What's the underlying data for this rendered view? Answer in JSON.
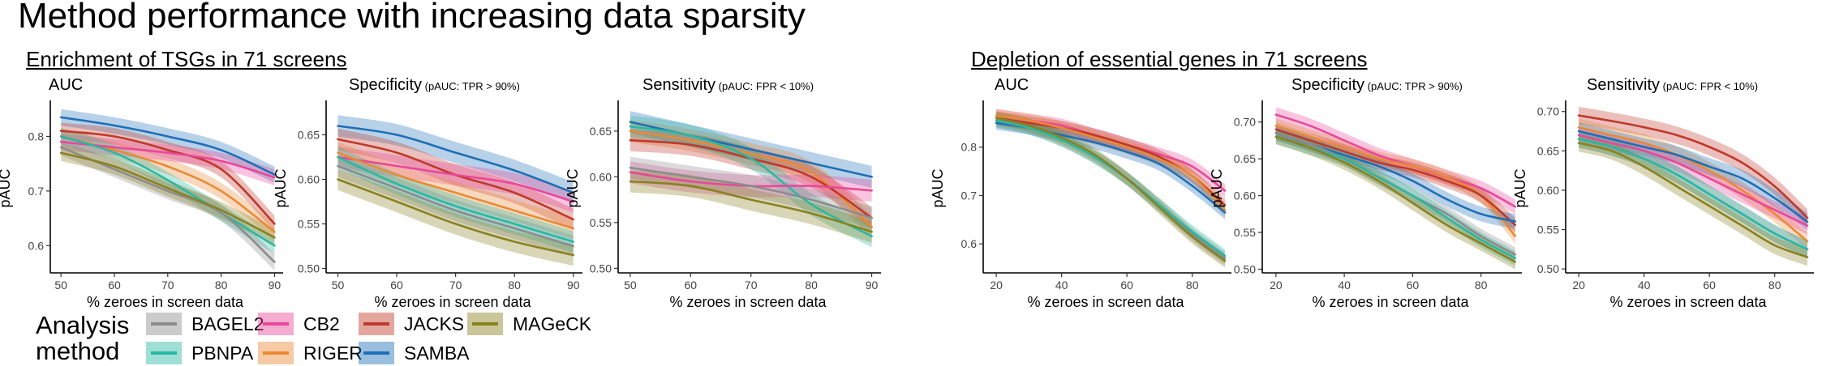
{
  "title": "Method performance with increasing data sparsity",
  "sections": [
    {
      "title": "Enrichment of TSGs in 71 screens"
    },
    {
      "title": "Depletion of essential genes in 71 screens"
    }
  ],
  "legend": {
    "title_line1": "Analysis",
    "title_line2": "method",
    "items": [
      {
        "name": "BAGEL2",
        "color": "#8c8c8c"
      },
      {
        "name": "PBNPA",
        "color": "#2ab8a2"
      },
      {
        "name": "CB2",
        "color": "#e8489a"
      },
      {
        "name": "RIGER",
        "color": "#e98a35"
      },
      {
        "name": "JACKS",
        "color": "#c0392b"
      },
      {
        "name": "SAMBA",
        "color": "#1e6fb6"
      },
      {
        "name": "MAGeCK",
        "color": "#8a8120"
      }
    ]
  },
  "chart_data": [
    {
      "type": "line",
      "section": 0,
      "title": "AUC",
      "subtitle": "",
      "xlabel": "% zeroes in screen data",
      "ylabel": "pAUC",
      "xlim": [
        48,
        91
      ],
      "ylim": [
        0.55,
        0.86
      ],
      "xticks": [
        50,
        60,
        70,
        80,
        90
      ],
      "yticks": [
        0.6,
        0.7,
        0.8
      ],
      "ytick_labels": [
        "0.6",
        "0.7",
        "0.8"
      ],
      "band": 0.015,
      "series": [
        {
          "name": "SAMBA",
          "x": [
            50,
            60,
            70,
            80,
            90
          ],
          "y": [
            0.835,
            0.82,
            0.8,
            0.775,
            0.73
          ]
        },
        {
          "name": "JACKS",
          "x": [
            50,
            60,
            70,
            80,
            90
          ],
          "y": [
            0.81,
            0.8,
            0.775,
            0.74,
            0.64
          ]
        },
        {
          "name": "RIGER",
          "x": [
            50,
            60,
            70,
            80,
            90
          ],
          "y": [
            0.8,
            0.775,
            0.745,
            0.7,
            0.625
          ]
        },
        {
          "name": "CB2",
          "x": [
            50,
            60,
            70,
            80,
            90
          ],
          "y": [
            0.79,
            0.78,
            0.77,
            0.755,
            0.725
          ]
        },
        {
          "name": "PBNPA",
          "x": [
            50,
            60,
            70,
            80,
            90
          ],
          "y": [
            0.8,
            0.77,
            0.72,
            0.66,
            0.6
          ]
        },
        {
          "name": "BAGEL2",
          "x": [
            50,
            60,
            70,
            80,
            90
          ],
          "y": [
            0.78,
            0.74,
            0.7,
            0.66,
            0.57
          ]
        },
        {
          "name": "MAGeCK",
          "x": [
            50,
            60,
            70,
            80,
            90
          ],
          "y": [
            0.77,
            0.745,
            0.705,
            0.665,
            0.615
          ]
        }
      ]
    },
    {
      "type": "line",
      "section": 0,
      "title": "Specificity",
      "subtitle": "(pAUC: TPR > 90%)",
      "xlabel": "% zeroes in screen data",
      "ylabel": "pAUC",
      "xlim": [
        48,
        91
      ],
      "ylim": [
        0.495,
        0.685
      ],
      "xticks": [
        50,
        60,
        70,
        80,
        90
      ],
      "yticks": [
        0.5,
        0.55,
        0.6,
        0.65
      ],
      "ytick_labels": [
        "0.50",
        "0.55",
        "0.60",
        "0.65"
      ],
      "band": 0.012,
      "series": [
        {
          "name": "SAMBA",
          "x": [
            50,
            60,
            70,
            80,
            90
          ],
          "y": [
            0.66,
            0.65,
            0.63,
            0.61,
            0.585
          ]
        },
        {
          "name": "JACKS",
          "x": [
            50,
            60,
            70,
            80,
            90
          ],
          "y": [
            0.645,
            0.63,
            0.605,
            0.585,
            0.555
          ]
        },
        {
          "name": "CB2",
          "x": [
            50,
            60,
            70,
            80,
            90
          ],
          "y": [
            0.625,
            0.615,
            0.605,
            0.595,
            0.575
          ]
        },
        {
          "name": "RIGER",
          "x": [
            50,
            60,
            70,
            80,
            90
          ],
          "y": [
            0.63,
            0.605,
            0.585,
            0.565,
            0.545
          ]
        },
        {
          "name": "BAGEL2",
          "x": [
            50,
            60,
            70,
            80,
            90
          ],
          "y": [
            0.615,
            0.59,
            0.565,
            0.545,
            0.525
          ]
        },
        {
          "name": "PBNPA",
          "x": [
            50,
            60,
            70,
            80,
            90
          ],
          "y": [
            0.625,
            0.595,
            0.57,
            0.55,
            0.53
          ]
        },
        {
          "name": "MAGeCK",
          "x": [
            50,
            60,
            70,
            80,
            90
          ],
          "y": [
            0.6,
            0.575,
            0.55,
            0.53,
            0.515
          ]
        }
      ]
    },
    {
      "type": "line",
      "section": 0,
      "title": "Sensitivity",
      "subtitle": "(pAUC: FPR < 10%)",
      "xlabel": "% zeroes in screen data",
      "ylabel": "pAUC",
      "xlim": [
        48,
        91
      ],
      "ylim": [
        0.495,
        0.68
      ],
      "xticks": [
        50,
        60,
        70,
        80,
        90
      ],
      "yticks": [
        0.5,
        0.55,
        0.6,
        0.65
      ],
      "ytick_labels": [
        "0.50",
        "0.55",
        "0.60",
        "0.65"
      ],
      "band": 0.012,
      "series": [
        {
          "name": "SAMBA",
          "x": [
            50,
            60,
            70,
            80,
            90
          ],
          "y": [
            0.66,
            0.645,
            0.63,
            0.615,
            0.6
          ]
        },
        {
          "name": "RIGER",
          "x": [
            50,
            60,
            70,
            80,
            90
          ],
          "y": [
            0.65,
            0.64,
            0.625,
            0.605,
            0.545
          ]
        },
        {
          "name": "JACKS",
          "x": [
            50,
            60,
            70,
            80,
            90
          ],
          "y": [
            0.64,
            0.635,
            0.62,
            0.6,
            0.555
          ]
        },
        {
          "name": "PBNPA",
          "x": [
            50,
            60,
            70,
            80,
            90
          ],
          "y": [
            0.655,
            0.645,
            0.62,
            0.57,
            0.535
          ]
        },
        {
          "name": "CB2",
          "x": [
            50,
            60,
            70,
            80,
            90
          ],
          "y": [
            0.605,
            0.595,
            0.59,
            0.59,
            0.585
          ]
        },
        {
          "name": "BAGEL2",
          "x": [
            50,
            60,
            70,
            80,
            90
          ],
          "y": [
            0.61,
            0.6,
            0.59,
            0.575,
            0.555
          ]
        },
        {
          "name": "MAGeCK",
          "x": [
            50,
            60,
            70,
            80,
            90
          ],
          "y": [
            0.595,
            0.59,
            0.575,
            0.56,
            0.54
          ]
        }
      ]
    },
    {
      "type": "line",
      "section": 1,
      "title": "AUC",
      "subtitle": "",
      "xlabel": "% zeroes in screen data",
      "ylabel": "pAUC",
      "xlim": [
        16,
        91
      ],
      "ylim": [
        0.54,
        0.89
      ],
      "xticks": [
        20,
        40,
        60,
        80
      ],
      "yticks": [
        0.6,
        0.7,
        0.8
      ],
      "ytick_labels": [
        "0.6",
        "0.7",
        "0.8"
      ],
      "band": 0.014,
      "series": [
        {
          "name": "CB2",
          "x": [
            20,
            30,
            40,
            50,
            60,
            70,
            80,
            90
          ],
          "y": [
            0.865,
            0.855,
            0.845,
            0.825,
            0.805,
            0.785,
            0.76,
            0.71
          ]
        },
        {
          "name": "JACKS",
          "x": [
            20,
            30,
            40,
            50,
            60,
            70,
            80,
            90
          ],
          "y": [
            0.86,
            0.85,
            0.84,
            0.825,
            0.805,
            0.78,
            0.74,
            0.68
          ]
        },
        {
          "name": "RIGER",
          "x": [
            20,
            30,
            40,
            50,
            60,
            70,
            80,
            90
          ],
          "y": [
            0.865,
            0.855,
            0.84,
            0.82,
            0.8,
            0.775,
            0.74,
            0.67
          ]
        },
        {
          "name": "SAMBA",
          "x": [
            20,
            30,
            40,
            50,
            60,
            70,
            80,
            90
          ],
          "y": [
            0.85,
            0.84,
            0.825,
            0.81,
            0.79,
            0.765,
            0.72,
            0.665
          ]
        },
        {
          "name": "BAGEL2",
          "x": [
            20,
            30,
            40,
            50,
            60,
            70,
            80,
            90
          ],
          "y": [
            0.855,
            0.84,
            0.815,
            0.78,
            0.735,
            0.68,
            0.62,
            0.57
          ]
        },
        {
          "name": "PBNPA",
          "x": [
            20,
            30,
            40,
            50,
            60,
            70,
            80,
            90
          ],
          "y": [
            0.855,
            0.84,
            0.815,
            0.78,
            0.735,
            0.68,
            0.625,
            0.575
          ]
        },
        {
          "name": "MAGeCK",
          "x": [
            20,
            30,
            40,
            50,
            60,
            70,
            80,
            90
          ],
          "y": [
            0.86,
            0.845,
            0.82,
            0.785,
            0.735,
            0.675,
            0.615,
            0.565
          ]
        }
      ]
    },
    {
      "type": "line",
      "section": 1,
      "title": "Specificity",
      "subtitle": "(pAUC: TPR > 90%)",
      "xlabel": "% zeroes in screen data",
      "ylabel": "pAUC",
      "xlim": [
        16,
        91
      ],
      "ylim": [
        0.495,
        0.725
      ],
      "xticks": [
        20,
        40,
        60,
        80
      ],
      "yticks": [
        0.5,
        0.55,
        0.6,
        0.65,
        0.7
      ],
      "ytick_labels": [
        "0.50",
        "0.55",
        "0.60",
        "0.65",
        "0.70"
      ],
      "band": 0.01,
      "series": [
        {
          "name": "CB2",
          "x": [
            20,
            30,
            40,
            50,
            60,
            70,
            80,
            90
          ],
          "y": [
            0.71,
            0.695,
            0.675,
            0.655,
            0.64,
            0.625,
            0.61,
            0.585
          ]
        },
        {
          "name": "RIGER",
          "x": [
            20,
            30,
            40,
            50,
            60,
            70,
            80,
            90
          ],
          "y": [
            0.695,
            0.68,
            0.665,
            0.65,
            0.64,
            0.625,
            0.6,
            0.545
          ]
        },
        {
          "name": "JACKS",
          "x": [
            20,
            30,
            40,
            50,
            60,
            70,
            80,
            90
          ],
          "y": [
            0.69,
            0.675,
            0.66,
            0.645,
            0.635,
            0.62,
            0.6,
            0.56
          ]
        },
        {
          "name": "SAMBA",
          "x": [
            20,
            30,
            40,
            50,
            60,
            70,
            80,
            90
          ],
          "y": [
            0.685,
            0.67,
            0.655,
            0.64,
            0.62,
            0.595,
            0.575,
            0.565
          ]
        },
        {
          "name": "BAGEL2",
          "x": [
            20,
            30,
            40,
            50,
            60,
            70,
            80,
            90
          ],
          "y": [
            0.685,
            0.67,
            0.65,
            0.625,
            0.6,
            0.575,
            0.545,
            0.52
          ]
        },
        {
          "name": "PBNPA",
          "x": [
            20,
            30,
            40,
            50,
            60,
            70,
            80,
            90
          ],
          "y": [
            0.68,
            0.665,
            0.65,
            0.625,
            0.6,
            0.57,
            0.54,
            0.515
          ]
        },
        {
          "name": "MAGeCK",
          "x": [
            20,
            30,
            40,
            50,
            60,
            70,
            80,
            90
          ],
          "y": [
            0.68,
            0.665,
            0.645,
            0.62,
            0.59,
            0.56,
            0.535,
            0.51
          ]
        }
      ]
    },
    {
      "type": "line",
      "section": 1,
      "title": "Sensitivity",
      "subtitle": "(pAUC: FPR < 10%)",
      "xlabel": "% zeroes in screen data",
      "ylabel": "pAUC",
      "xlim": [
        16,
        91
      ],
      "ylim": [
        0.495,
        0.71
      ],
      "xticks": [
        20,
        40,
        60,
        80
      ],
      "yticks": [
        0.5,
        0.55,
        0.6,
        0.65,
        0.7
      ],
      "ytick_labels": [
        "0.50",
        "0.55",
        "0.60",
        "0.65",
        "0.70"
      ],
      "band": 0.011,
      "series": [
        {
          "name": "JACKS",
          "x": [
            20,
            30,
            40,
            50,
            60,
            70,
            80,
            90
          ],
          "y": [
            0.695,
            0.688,
            0.68,
            0.67,
            0.655,
            0.635,
            0.605,
            0.565
          ]
        },
        {
          "name": "RIGER",
          "x": [
            20,
            30,
            40,
            50,
            60,
            70,
            80,
            90
          ],
          "y": [
            0.68,
            0.67,
            0.66,
            0.645,
            0.625,
            0.6,
            0.57,
            0.535
          ]
        },
        {
          "name": "SAMBA",
          "x": [
            20,
            30,
            40,
            50,
            60,
            70,
            80,
            90
          ],
          "y": [
            0.675,
            0.665,
            0.655,
            0.645,
            0.63,
            0.615,
            0.59,
            0.56
          ]
        },
        {
          "name": "CB2",
          "x": [
            20,
            30,
            40,
            50,
            60,
            70,
            80,
            90
          ],
          "y": [
            0.67,
            0.66,
            0.65,
            0.635,
            0.615,
            0.595,
            0.575,
            0.555
          ]
        },
        {
          "name": "BAGEL2",
          "x": [
            20,
            30,
            40,
            50,
            60,
            70,
            80,
            90
          ],
          "y": [
            0.665,
            0.655,
            0.64,
            0.62,
            0.595,
            0.57,
            0.545,
            0.525
          ]
        },
        {
          "name": "PBNPA",
          "x": [
            20,
            30,
            40,
            50,
            60,
            70,
            80,
            90
          ],
          "y": [
            0.665,
            0.655,
            0.64,
            0.62,
            0.595,
            0.57,
            0.545,
            0.525
          ]
        },
        {
          "name": "MAGeCK",
          "x": [
            20,
            30,
            40,
            50,
            60,
            70,
            80,
            90
          ],
          "y": [
            0.66,
            0.65,
            0.63,
            0.605,
            0.58,
            0.555,
            0.53,
            0.515
          ]
        }
      ]
    }
  ]
}
